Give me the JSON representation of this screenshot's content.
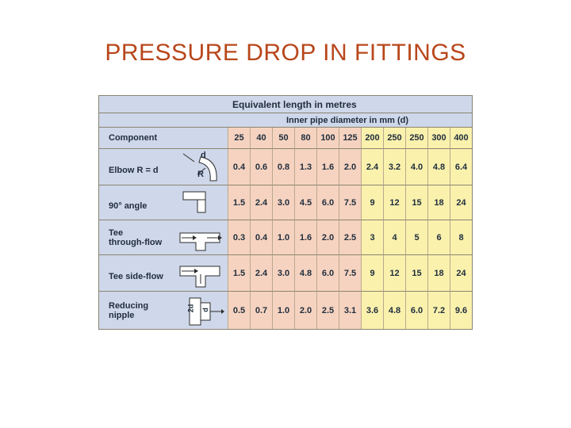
{
  "title": "PRESSURE DROP IN FITTINGS",
  "table": {
    "header": "Equivalent length in metres",
    "subheader": "Inner pipe diameter in mm  (d)",
    "component_header": "Component",
    "diameters": [
      "25",
      "40",
      "50",
      "80",
      "100",
      "125",
      "200",
      "250",
      "250",
      "300",
      "400"
    ],
    "rows": [
      {
        "label": "Elbow R = d",
        "icon": "elbow-icon",
        "values": [
          "0.4",
          "0.6",
          "0.8",
          "1.3",
          "1.6",
          "2.0",
          "2.4",
          "3.2",
          "4.0",
          "4.8",
          "6.4"
        ]
      },
      {
        "label": "90° angle",
        "icon": "angle-90-icon",
        "values": [
          "1.5",
          "2.4",
          "3.0",
          "4.5",
          "6.0",
          "7.5",
          "9",
          "12",
          "15",
          "18",
          "24"
        ]
      },
      {
        "label": "Tee\nthrough-flow",
        "icon": "tee-through-icon",
        "values": [
          "0.3",
          "0.4",
          "1.0",
          "1.6",
          "2.0",
          "2.5",
          "3",
          "4",
          "5",
          "6",
          "8"
        ]
      },
      {
        "label": "Tee side-flow",
        "icon": "tee-side-icon",
        "values": [
          "1.5",
          "2.4",
          "3.0",
          "4.8",
          "6.0",
          "7.5",
          "9",
          "12",
          "15",
          "18",
          "24"
        ]
      },
      {
        "label": "Reducing\nnipple",
        "icon": "reducing-nipple-icon",
        "values": [
          "0.5",
          "0.7",
          "1.0",
          "2.0",
          "2.5",
          "3.1",
          "3.6",
          "4.8",
          "6.0",
          "7.2",
          "9.6"
        ]
      }
    ],
    "elbow_icon_labels": [
      "d",
      "R"
    ],
    "nipple_icon_labels": [
      "2d",
      "d"
    ],
    "colors": {
      "peach": "#f6d3c0",
      "yellow": "#faf1ad",
      "blue": "#cfd8ea",
      "title": "#b8471b"
    }
  }
}
